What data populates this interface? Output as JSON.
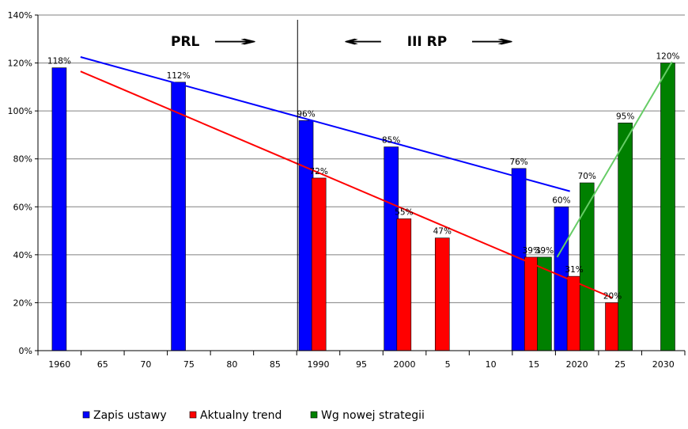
{
  "chart_data": {
    "type": "bar",
    "categories": [
      "1960",
      "65",
      "70",
      "75",
      "80",
      "85",
      "1990",
      "95",
      "2000",
      "5",
      "10",
      "15",
      "2020",
      "25",
      "2030"
    ],
    "ylim": [
      0,
      140
    ],
    "y_ticks": [
      0,
      20,
      40,
      60,
      80,
      100,
      120,
      140
    ],
    "y_tick_labels": [
      "0%",
      "20%",
      "40%",
      "60%",
      "80%",
      "100%",
      "120%",
      "140%"
    ],
    "grid": true,
    "legend_position": "bottom",
    "series": [
      {
        "name": "Zapis ustawy",
        "color": "#0000ff",
        "bars": [
          {
            "x": 1960,
            "value": 118,
            "label": "118%"
          },
          {
            "x": 1974,
            "value": 112,
            "label": "112%"
          },
          {
            "x": 1989,
            "value": 96,
            "label": "96%"
          },
          {
            "x": 1999,
            "value": 85,
            "label": "85%"
          },
          {
            "x": 2014,
            "value": 76,
            "label": "76%"
          },
          {
            "x": 2019,
            "value": 60,
            "label": "60%"
          }
        ],
        "trend": [
          {
            "x": 1962.5,
            "y": 122.5
          },
          {
            "x": 2020,
            "y": 66.5
          }
        ]
      },
      {
        "name": "Aktualny trend",
        "color": "#ff0000",
        "bars": [
          {
            "x": 1990.5,
            "value": 72,
            "label": "72%"
          },
          {
            "x": 2000.5,
            "value": 55,
            "label": "55%"
          },
          {
            "x": 2005,
            "value": 47,
            "label": "47%"
          },
          {
            "x": 2015.5,
            "value": 39,
            "label": "39%"
          },
          {
            "x": 2020.5,
            "value": 31,
            "label": "31%"
          },
          {
            "x": 2025,
            "value": 20,
            "label": "20%"
          }
        ],
        "trend": [
          {
            "x": 1962.5,
            "y": 116.5
          },
          {
            "x": 2025,
            "y": 22
          }
        ]
      },
      {
        "name": "Wg nowej strategii",
        "color": "#008000",
        "bars": [
          {
            "x": 2017,
            "value": 39,
            "label": "39%"
          },
          {
            "x": 2022,
            "value": 70,
            "label": "70%"
          },
          {
            "x": 2026.5,
            "value": 95,
            "label": "95%"
          },
          {
            "x": 2031.5,
            "value": 120,
            "label": "120%"
          }
        ],
        "trend": [
          {
            "x": 2018.5,
            "y": 39
          },
          {
            "x": 2032,
            "y": 120.5
          }
        ],
        "trend_color": "#66cc66"
      }
    ],
    "annotations": {
      "divider_year": 1988,
      "prl": {
        "text": "PRL",
        "arrow": "→"
      },
      "iii_rp": {
        "text": "III RP",
        "arrow_left": "←",
        "arrow_right": "→"
      }
    }
  }
}
